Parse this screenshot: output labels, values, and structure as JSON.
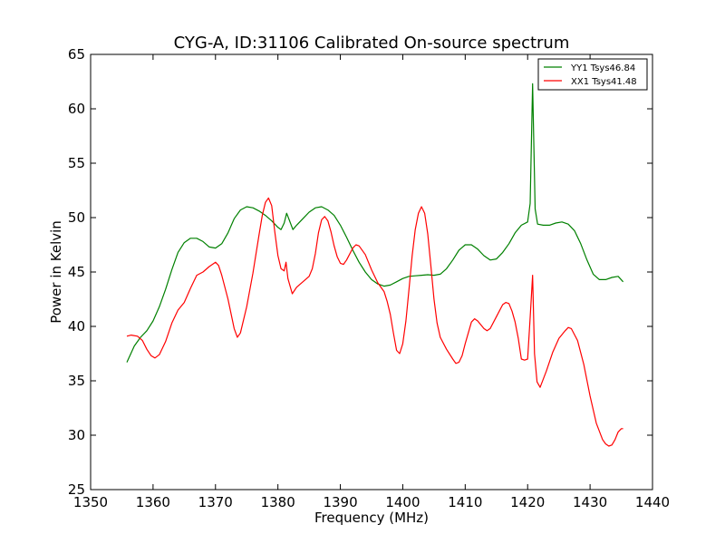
{
  "chart_data": {
    "type": "line",
    "title": "CYG-A, ID:31106 Calibrated On-source spectrum",
    "xlabel": "Frequency (MHz)",
    "ylabel": "Power in Kelvin",
    "xlim": [
      1350,
      1440
    ],
    "ylim": [
      25,
      65
    ],
    "xticks": [
      1350,
      1360,
      1370,
      1380,
      1390,
      1400,
      1410,
      1420,
      1430,
      1440
    ],
    "yticks": [
      25,
      30,
      35,
      40,
      45,
      50,
      55,
      60,
      65
    ],
    "grid": false,
    "legend_position": "top-right",
    "series": [
      {
        "name": "YY1 Tsys46.84",
        "color": "#008000",
        "points": [
          [
            1355.8,
            36.7
          ],
          [
            1357,
            38.2
          ],
          [
            1358,
            39.0
          ],
          [
            1359,
            39.6
          ],
          [
            1360,
            40.5
          ],
          [
            1361,
            41.8
          ],
          [
            1362,
            43.4
          ],
          [
            1363,
            45.2
          ],
          [
            1364,
            46.8
          ],
          [
            1365,
            47.7
          ],
          [
            1366,
            48.1
          ],
          [
            1367,
            48.1
          ],
          [
            1368,
            47.8
          ],
          [
            1369,
            47.3
          ],
          [
            1370,
            47.2
          ],
          [
            1371,
            47.6
          ],
          [
            1372,
            48.6
          ],
          [
            1373,
            49.9
          ],
          [
            1374,
            50.7
          ],
          [
            1375,
            51.0
          ],
          [
            1376,
            50.9
          ],
          [
            1377,
            50.6
          ],
          [
            1378,
            50.2
          ],
          [
            1379,
            49.7
          ],
          [
            1380,
            49.1
          ],
          [
            1380.5,
            48.9
          ],
          [
            1381,
            49.5
          ],
          [
            1381.4,
            50.4
          ],
          [
            1381.8,
            49.8
          ],
          [
            1382.4,
            48.9
          ],
          [
            1383,
            49.3
          ],
          [
            1384,
            49.9
          ],
          [
            1385,
            50.5
          ],
          [
            1386,
            50.9
          ],
          [
            1387,
            51.0
          ],
          [
            1388,
            50.7
          ],
          [
            1389,
            50.2
          ],
          [
            1390,
            49.3
          ],
          [
            1391,
            48.2
          ],
          [
            1392,
            47.0
          ],
          [
            1393,
            45.9
          ],
          [
            1394,
            45.0
          ],
          [
            1395,
            44.3
          ],
          [
            1396,
            43.9
          ],
          [
            1397,
            43.7
          ],
          [
            1398,
            43.8
          ],
          [
            1399,
            44.1
          ],
          [
            1400,
            44.4
          ],
          [
            1401,
            44.6
          ],
          [
            1402,
            44.65
          ],
          [
            1403,
            44.7
          ],
          [
            1404,
            44.75
          ],
          [
            1405,
            44.7
          ],
          [
            1406,
            44.8
          ],
          [
            1407,
            45.3
          ],
          [
            1408,
            46.1
          ],
          [
            1409,
            47.0
          ],
          [
            1410,
            47.5
          ],
          [
            1411,
            47.5
          ],
          [
            1412,
            47.1
          ],
          [
            1413,
            46.5
          ],
          [
            1414,
            46.1
          ],
          [
            1415,
            46.2
          ],
          [
            1416,
            46.8
          ],
          [
            1417,
            47.6
          ],
          [
            1418,
            48.6
          ],
          [
            1419,
            49.3
          ],
          [
            1420,
            49.6
          ],
          [
            1420.4,
            51.3
          ],
          [
            1420.8,
            62.3
          ],
          [
            1421.2,
            50.8
          ],
          [
            1421.6,
            49.4
          ],
          [
            1422.5,
            49.3
          ],
          [
            1423.5,
            49.3
          ],
          [
            1424.5,
            49.5
          ],
          [
            1425.5,
            49.6
          ],
          [
            1426.5,
            49.4
          ],
          [
            1427.5,
            48.8
          ],
          [
            1428.5,
            47.6
          ],
          [
            1429.5,
            46.1
          ],
          [
            1430.5,
            44.8
          ],
          [
            1431.5,
            44.3
          ],
          [
            1432.5,
            44.3
          ],
          [
            1433.5,
            44.5
          ],
          [
            1434.5,
            44.6
          ],
          [
            1435.3,
            44.1
          ]
        ]
      },
      {
        "name": "XX1 Tsys41.48",
        "color": "#ff0000",
        "points": [
          [
            1355.8,
            39.1
          ],
          [
            1356.5,
            39.2
          ],
          [
            1357.5,
            39.1
          ],
          [
            1358.3,
            38.7
          ],
          [
            1359,
            37.9
          ],
          [
            1359.7,
            37.3
          ],
          [
            1360.3,
            37.1
          ],
          [
            1361,
            37.4
          ],
          [
            1362,
            38.6
          ],
          [
            1363,
            40.3
          ],
          [
            1364,
            41.5
          ],
          [
            1365,
            42.2
          ],
          [
            1366,
            43.5
          ],
          [
            1367,
            44.7
          ],
          [
            1368,
            45.0
          ],
          [
            1369,
            45.5
          ],
          [
            1370,
            45.9
          ],
          [
            1370.5,
            45.6
          ],
          [
            1371,
            44.7
          ],
          [
            1372,
            42.5
          ],
          [
            1373,
            39.8
          ],
          [
            1373.5,
            39.0
          ],
          [
            1374,
            39.4
          ],
          [
            1375,
            41.8
          ],
          [
            1376,
            44.9
          ],
          [
            1377,
            48.5
          ],
          [
            1377.5,
            50.2
          ],
          [
            1378,
            51.4
          ],
          [
            1378.5,
            51.8
          ],
          [
            1379,
            51.1
          ],
          [
            1379.5,
            48.7
          ],
          [
            1380,
            46.5
          ],
          [
            1380.5,
            45.3
          ],
          [
            1381,
            45.1
          ],
          [
            1381.3,
            45.9
          ],
          [
            1381.6,
            44.4
          ],
          [
            1382.3,
            43.0
          ],
          [
            1383,
            43.6
          ],
          [
            1384,
            44.1
          ],
          [
            1385,
            44.6
          ],
          [
            1385.5,
            45.3
          ],
          [
            1386,
            46.7
          ],
          [
            1386.5,
            48.6
          ],
          [
            1387,
            49.8
          ],
          [
            1387.5,
            50.1
          ],
          [
            1388,
            49.7
          ],
          [
            1388.5,
            48.7
          ],
          [
            1389,
            47.4
          ],
          [
            1389.5,
            46.4
          ],
          [
            1390,
            45.8
          ],
          [
            1390.5,
            45.7
          ],
          [
            1391,
            46.1
          ],
          [
            1392,
            47.2
          ],
          [
            1392.5,
            47.5
          ],
          [
            1393,
            47.4
          ],
          [
            1394,
            46.6
          ],
          [
            1395,
            45.2
          ],
          [
            1396,
            44.0
          ],
          [
            1397,
            43.2
          ],
          [
            1397.5,
            42.3
          ],
          [
            1398,
            41.1
          ],
          [
            1398.5,
            39.4
          ],
          [
            1399,
            37.8
          ],
          [
            1399.5,
            37.5
          ],
          [
            1400,
            38.4
          ],
          [
            1400.5,
            40.5
          ],
          [
            1401,
            43.4
          ],
          [
            1401.5,
            46.5
          ],
          [
            1402,
            48.9
          ],
          [
            1402.5,
            50.4
          ],
          [
            1403,
            51.0
          ],
          [
            1403.5,
            50.4
          ],
          [
            1404,
            48.5
          ],
          [
            1404.5,
            45.6
          ],
          [
            1405,
            42.5
          ],
          [
            1405.5,
            40.3
          ],
          [
            1406,
            39.0
          ],
          [
            1407,
            37.9
          ],
          [
            1408,
            37.0
          ],
          [
            1408.5,
            36.6
          ],
          [
            1409,
            36.7
          ],
          [
            1409.5,
            37.3
          ],
          [
            1410,
            38.4
          ],
          [
            1411,
            40.4
          ],
          [
            1411.5,
            40.7
          ],
          [
            1412,
            40.5
          ],
          [
            1413,
            39.8
          ],
          [
            1413.5,
            39.6
          ],
          [
            1414,
            39.8
          ],
          [
            1415,
            40.9
          ],
          [
            1416,
            42.0
          ],
          [
            1416.5,
            42.2
          ],
          [
            1417,
            42.1
          ],
          [
            1417.5,
            41.4
          ],
          [
            1418,
            40.4
          ],
          [
            1418.5,
            38.9
          ],
          [
            1419,
            37.0
          ],
          [
            1419.5,
            36.9
          ],
          [
            1420,
            37.0
          ],
          [
            1420.4,
            40.8
          ],
          [
            1420.8,
            44.7
          ],
          [
            1421.1,
            37.5
          ],
          [
            1421.5,
            34.9
          ],
          [
            1422,
            34.4
          ],
          [
            1423,
            35.9
          ],
          [
            1424,
            37.6
          ],
          [
            1425,
            38.9
          ],
          [
            1426,
            39.6
          ],
          [
            1426.5,
            39.9
          ],
          [
            1427,
            39.8
          ],
          [
            1428,
            38.7
          ],
          [
            1429,
            36.5
          ],
          [
            1430,
            33.6
          ],
          [
            1431,
            31.1
          ],
          [
            1432,
            29.6
          ],
          [
            1432.5,
            29.2
          ],
          [
            1433,
            29.0
          ],
          [
            1433.5,
            29.1
          ],
          [
            1434,
            29.6
          ],
          [
            1434.5,
            30.3
          ],
          [
            1435,
            30.6
          ],
          [
            1435.3,
            30.6
          ]
        ]
      }
    ]
  }
}
